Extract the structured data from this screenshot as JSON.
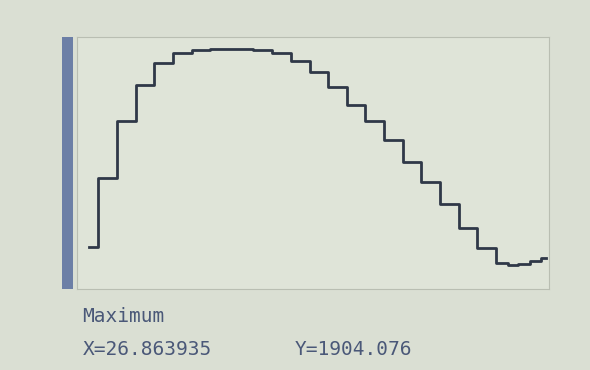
{
  "chart_data": {
    "type": "line",
    "x": [
      1.9,
      5,
      8,
      11,
      14,
      17,
      20,
      23,
      26.863935,
      30,
      33,
      36,
      39,
      42,
      45,
      48,
      51,
      54,
      57,
      60,
      63,
      66,
      69,
      70,
      72,
      74,
      75.5
    ],
    "values": [
      330,
      880,
      1330,
      1620,
      1790,
      1870,
      1895,
      1902,
      1904.076,
      1898,
      1870,
      1810,
      1720,
      1600,
      1460,
      1330,
      1180,
      1010,
      850,
      670,
      480,
      320,
      200,
      190,
      195,
      220,
      245
    ],
    "color": "#2f3848",
    "xlim": [
      0,
      76
    ],
    "ylim": [
      0,
      2000
    ],
    "tick_labels": false,
    "grid": false,
    "annotations": {
      "label": "Maximum",
      "x_text": "X=26.863935",
      "y_text": "Y=1904.076"
    }
  }
}
